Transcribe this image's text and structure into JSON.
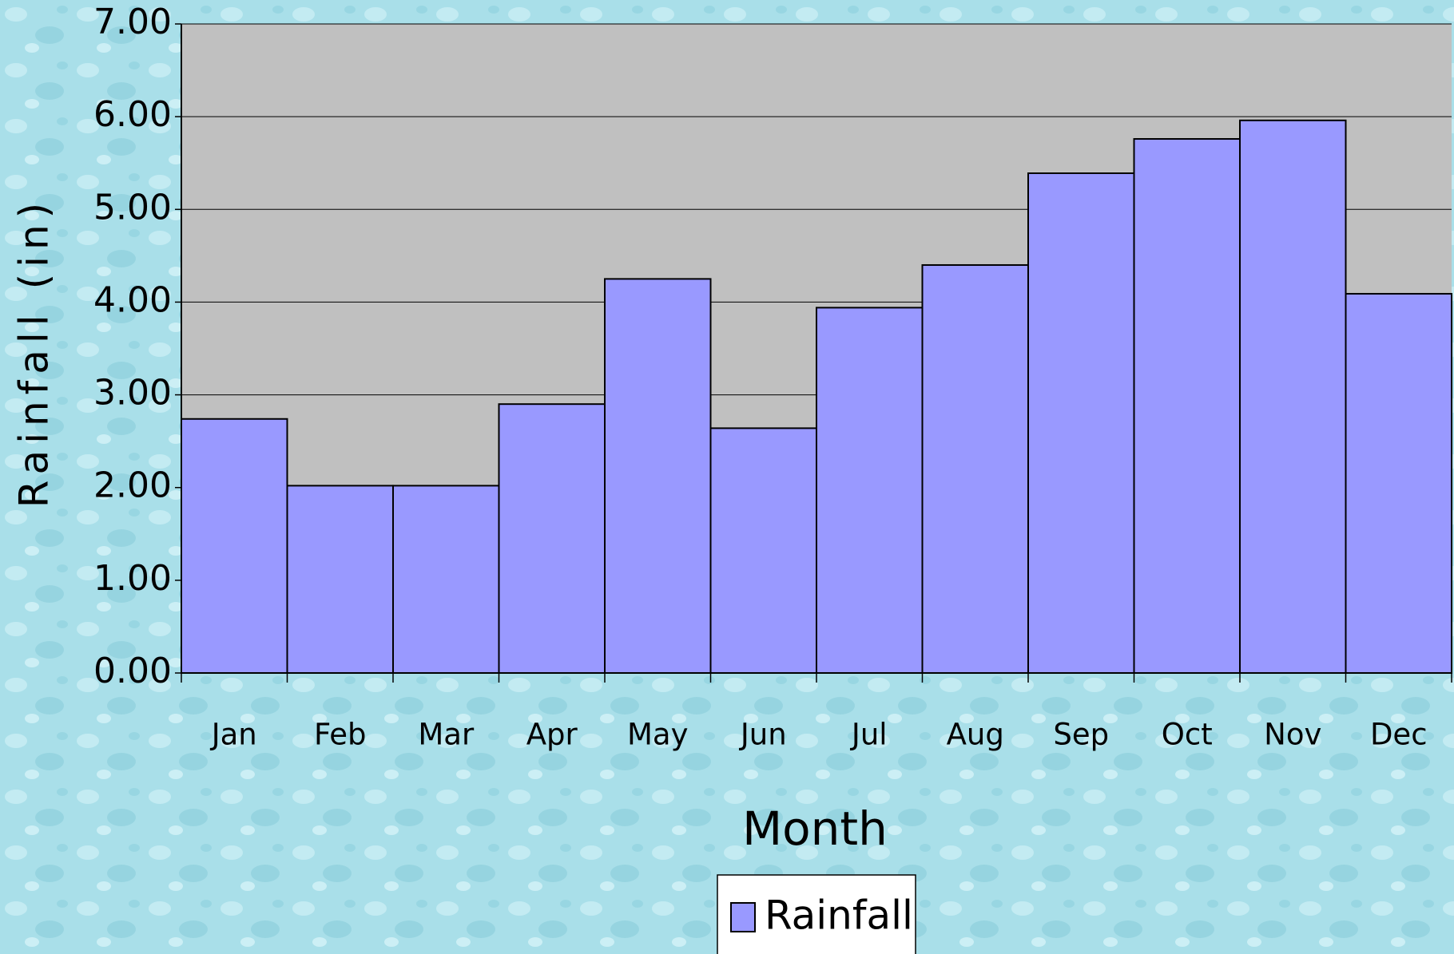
{
  "chart_data": {
    "type": "bar",
    "x_label": "Month",
    "y_label": "Rainfall (in)",
    "categories": [
      "Jan",
      "Feb",
      "Mar",
      "Apr",
      "May",
      "Jun",
      "Jul",
      "Aug",
      "Sep",
      "Oct",
      "Nov",
      "Dec"
    ],
    "series": [
      {
        "name": "Rainfall",
        "color": "#9999ff",
        "values": [
          2.74,
          2.02,
          2.02,
          2.9,
          4.25,
          2.64,
          3.94,
          4.4,
          5.39,
          5.76,
          5.96,
          4.09
        ]
      }
    ],
    "ylim": [
      0,
      7
    ],
    "yticks": [
      {
        "value": 0,
        "label": "0.00"
      },
      {
        "value": 1,
        "label": "1.00"
      },
      {
        "value": 2,
        "label": "2.00"
      },
      {
        "value": 3,
        "label": "3.00"
      },
      {
        "value": 4,
        "label": "4.00"
      },
      {
        "value": 5,
        "label": "5.00"
      },
      {
        "value": 6,
        "label": "6.00"
      },
      {
        "value": 7,
        "label": "7.00"
      }
    ],
    "grid": true,
    "legend": "bottom"
  }
}
